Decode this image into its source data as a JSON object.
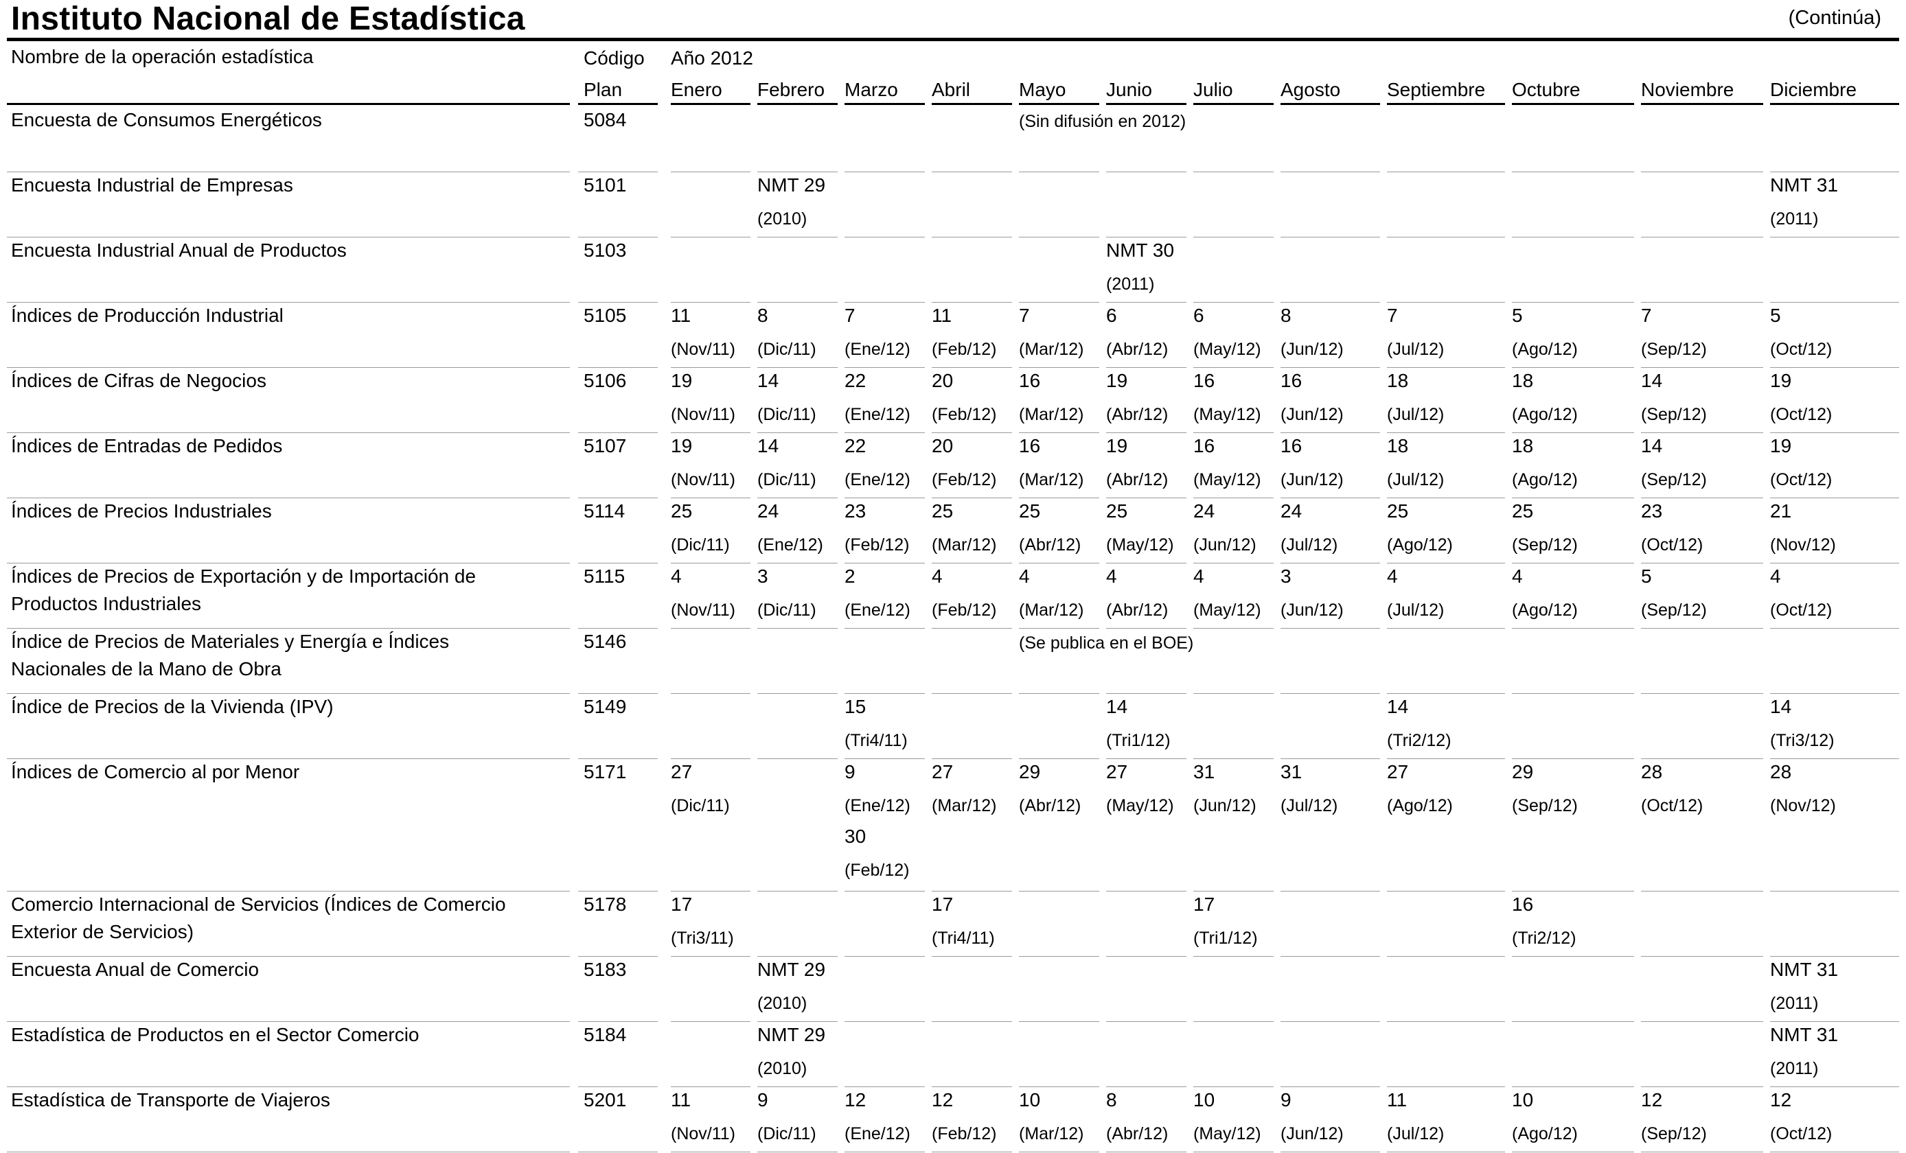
{
  "page": {
    "title": "Instituto Nacional de Estadística",
    "continued": "(Continúa)"
  },
  "header": {
    "name_col": "Nombre de la operación estadística",
    "code_col": [
      "Código",
      "Plan"
    ],
    "year": "Año 2012",
    "months": [
      "Enero",
      "Febrero",
      "Marzo",
      "Abril",
      "Mayo",
      "Junio",
      "Julio",
      "Agosto",
      "Septiembre",
      "Octubre",
      "Noviembre",
      "Diciembre"
    ]
  },
  "rows": [
    {
      "name": [
        "Encuesta de Consumos Energéticos"
      ],
      "code": "5084",
      "note": {
        "month": 4,
        "text": "(Sin difusión en 2012)"
      },
      "cells": {}
    },
    {
      "name": [
        "Encuesta Industrial de Empresas"
      ],
      "code": "5101",
      "cells": {
        "1": [
          "NMT 29",
          "(2010)"
        ],
        "11": [
          "NMT 31",
          "(2011)"
        ]
      }
    },
    {
      "name": [
        "Encuesta Industrial Anual de Productos"
      ],
      "code": "5103",
      "cells": {
        "5": [
          "NMT 30",
          "(2011)"
        ]
      }
    },
    {
      "name": [
        "Índices de Producción Industrial"
      ],
      "code": "5105",
      "cells": {
        "0": [
          "11",
          "(Nov/11)"
        ],
        "1": [
          "8",
          "(Dic/11)"
        ],
        "2": [
          "7",
          "(Ene/12)"
        ],
        "3": [
          "11",
          "(Feb/12)"
        ],
        "4": [
          "7",
          "(Mar/12)"
        ],
        "5": [
          "6",
          "(Abr/12)"
        ],
        "6": [
          "6",
          "(May/12)"
        ],
        "7": [
          "8",
          "(Jun/12)"
        ],
        "8": [
          "7",
          "(Jul/12)"
        ],
        "9": [
          "5",
          "(Ago/12)"
        ],
        "10": [
          "7",
          "(Sep/12)"
        ],
        "11": [
          "5",
          "(Oct/12)"
        ]
      }
    },
    {
      "name": [
        "Índices de Cifras de Negocios"
      ],
      "code": "5106",
      "cells": {
        "0": [
          "19",
          "(Nov/11)"
        ],
        "1": [
          "14",
          "(Dic/11)"
        ],
        "2": [
          "22",
          "(Ene/12)"
        ],
        "3": [
          "20",
          "(Feb/12)"
        ],
        "4": [
          "16",
          "(Mar/12)"
        ],
        "5": [
          "19",
          "(Abr/12)"
        ],
        "6": [
          "16",
          "(May/12)"
        ],
        "7": [
          "16",
          "(Jun/12)"
        ],
        "8": [
          "18",
          "(Jul/12)"
        ],
        "9": [
          "18",
          "(Ago/12)"
        ],
        "10": [
          "14",
          "(Sep/12)"
        ],
        "11": [
          "19",
          "(Oct/12)"
        ]
      }
    },
    {
      "name": [
        "Índices de Entradas de Pedidos"
      ],
      "code": "5107",
      "cells": {
        "0": [
          "19",
          "(Nov/11)"
        ],
        "1": [
          "14",
          "(Dic/11)"
        ],
        "2": [
          "22",
          "(Ene/12)"
        ],
        "3": [
          "20",
          "(Feb/12)"
        ],
        "4": [
          "16",
          "(Mar/12)"
        ],
        "5": [
          "19",
          "(Abr/12)"
        ],
        "6": [
          "16",
          "(May/12)"
        ],
        "7": [
          "16",
          "(Jun/12)"
        ],
        "8": [
          "18",
          "(Jul/12)"
        ],
        "9": [
          "18",
          "(Ago/12)"
        ],
        "10": [
          "14",
          "(Sep/12)"
        ],
        "11": [
          "19",
          "(Oct/12)"
        ]
      }
    },
    {
      "name": [
        "Índices de Precios Industriales"
      ],
      "code": "5114",
      "cells": {
        "0": [
          "25",
          "(Dic/11)"
        ],
        "1": [
          "24",
          "(Ene/12)"
        ],
        "2": [
          "23",
          "(Feb/12)"
        ],
        "3": [
          "25",
          "(Mar/12)"
        ],
        "4": [
          "25",
          "(Abr/12)"
        ],
        "5": [
          "25",
          "(May/12)"
        ],
        "6": [
          "24",
          "(Jun/12)"
        ],
        "7": [
          "24",
          "(Jul/12)"
        ],
        "8": [
          "25",
          "(Ago/12)"
        ],
        "9": [
          "25",
          "(Sep/12)"
        ],
        "10": [
          "23",
          "(Oct/12)"
        ],
        "11": [
          "21",
          "(Nov/12)"
        ]
      }
    },
    {
      "name": [
        "Índices de Precios de Exportación y de Importación de",
        "Productos Industriales"
      ],
      "code": "5115",
      "cells": {
        "0": [
          "4",
          "(Nov/11)"
        ],
        "1": [
          "3",
          "(Dic/11)"
        ],
        "2": [
          "2",
          "(Ene/12)"
        ],
        "3": [
          "4",
          "(Feb/12)"
        ],
        "4": [
          "4",
          "(Mar/12)"
        ],
        "5": [
          "4",
          "(Abr/12)"
        ],
        "6": [
          "4",
          "(May/12)"
        ],
        "7": [
          "3",
          "(Jun/12)"
        ],
        "8": [
          "4",
          "(Jul/12)"
        ],
        "9": [
          "4",
          "(Ago/12)"
        ],
        "10": [
          "5",
          "(Sep/12)"
        ],
        "11": [
          "4",
          "(Oct/12)"
        ]
      }
    },
    {
      "name": [
        "Índice de Precios de Materiales y Energía e Índices",
        "Nacionales de la Mano de Obra"
      ],
      "code": "5146",
      "note": {
        "month": 4,
        "text": "(Se publica en el BOE)"
      },
      "cells": {}
    },
    {
      "name": [
        "Índice de Precios de la Vivienda (IPV)"
      ],
      "code": "5149",
      "cells": {
        "2": [
          "15",
          "(Tri4/11)"
        ],
        "5": [
          "14",
          "(Tri1/12)"
        ],
        "8": [
          "14",
          "(Tri2/12)"
        ],
        "11": [
          "14",
          "(Tri3/12)"
        ]
      }
    },
    {
      "name": [
        "Índices de Comercio al por Menor"
      ],
      "code": "5171",
      "cells": {
        "0": [
          "27",
          "(Dic/11)"
        ],
        "2": [
          "9",
          "(Ene/12)",
          "30",
          "(Feb/12)"
        ],
        "3": [
          "27",
          "(Mar/12)"
        ],
        "4": [
          "29",
          "(Abr/12)"
        ],
        "5": [
          "27",
          "(May/12)"
        ],
        "6": [
          "31",
          "(Jun/12)"
        ],
        "7": [
          "31",
          "(Jul/12)"
        ],
        "8": [
          "27",
          "(Ago/12)"
        ],
        "9": [
          "29",
          "(Sep/12)"
        ],
        "10": [
          "28",
          "(Oct/12)"
        ],
        "11": [
          "28",
          "(Nov/12)"
        ]
      }
    },
    {
      "name": [
        "Comercio Internacional de Servicios (Índices de Comercio",
        "Exterior de Servicios)"
      ],
      "code": "5178",
      "cells": {
        "0": [
          "17",
          "(Tri3/11)"
        ],
        "3": [
          "17",
          "(Tri4/11)"
        ],
        "6": [
          "17",
          "(Tri1/12)"
        ],
        "9": [
          "16",
          "(Tri2/12)"
        ]
      }
    },
    {
      "name": [
        "Encuesta Anual de Comercio"
      ],
      "code": "5183",
      "cells": {
        "1": [
          "NMT 29",
          "(2010)"
        ],
        "11": [
          "NMT 31",
          "(2011)"
        ]
      }
    },
    {
      "name": [
        "Estadística de Productos en el Sector Comercio"
      ],
      "code": "5184",
      "cells": {
        "1": [
          "NMT 29",
          "(2010)"
        ],
        "11": [
          "NMT 31",
          "(2011)"
        ]
      }
    },
    {
      "name": [
        "Estadística de Transporte de Viajeros"
      ],
      "code": "5201",
      "cells": {
        "0": [
          "11",
          "(Nov/11)"
        ],
        "1": [
          "9",
          "(Dic/11)"
        ],
        "2": [
          "12",
          "(Ene/12)"
        ],
        "3": [
          "12",
          "(Feb/12)"
        ],
        "4": [
          "10",
          "(Mar/12)"
        ],
        "5": [
          "8",
          "(Abr/12)"
        ],
        "6": [
          "10",
          "(May/12)"
        ],
        "7": [
          "9",
          "(Jun/12)"
        ],
        "8": [
          "11",
          "(Jul/12)"
        ],
        "9": [
          "10",
          "(Ago/12)"
        ],
        "10": [
          "12",
          "(Sep/12)"
        ],
        "11": [
          "12",
          "(Oct/12)"
        ]
      }
    }
  ]
}
